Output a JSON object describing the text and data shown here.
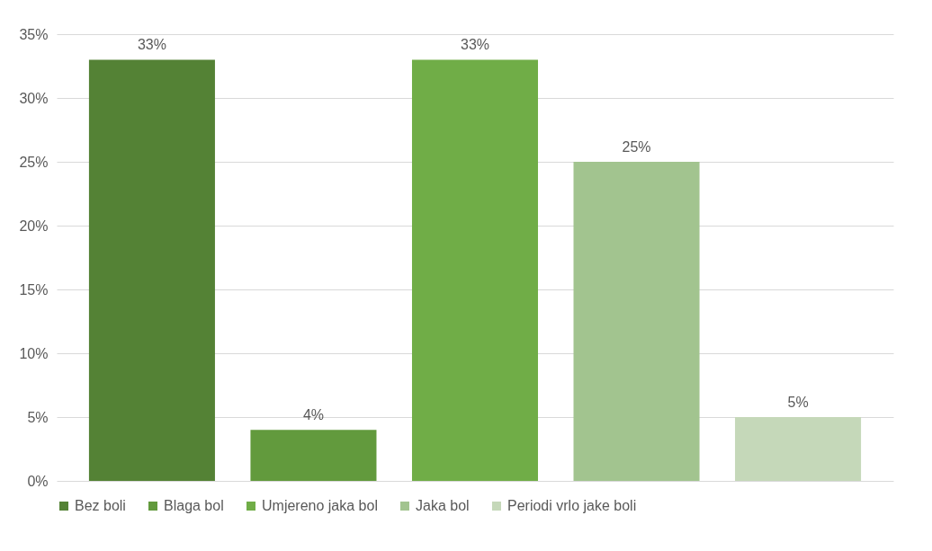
{
  "chart_data": {
    "type": "bar",
    "categories": [
      null,
      null,
      null,
      null,
      null
    ],
    "series": [
      {
        "name": "Bez boli",
        "color": "#548235",
        "values": [
          33,
          null,
          null,
          null,
          null
        ],
        "value_labels": [
          "33%",
          null,
          null,
          null,
          null
        ]
      },
      {
        "name": "Blaga bol",
        "color": "#629a3d",
        "values": [
          null,
          4,
          null,
          null,
          null
        ],
        "value_labels": [
          null,
          "4%",
          null,
          null,
          null
        ]
      },
      {
        "name": "Umjereno jaka bol",
        "color": "#70ad47",
        "values": [
          null,
          null,
          33,
          null,
          null
        ],
        "value_labels": [
          null,
          null,
          "33%",
          null,
          null
        ]
      },
      {
        "name": "Jaka bol",
        "color": "#a2c48f",
        "values": [
          null,
          null,
          null,
          25,
          null
        ],
        "value_labels": [
          null,
          null,
          null,
          "25%",
          null
        ]
      },
      {
        "name": "Periodi vrlo jake boli",
        "color": "#c5d8b9",
        "values": [
          null,
          null,
          null,
          null,
          5
        ],
        "value_labels": [
          null,
          null,
          null,
          null,
          "5%"
        ]
      }
    ],
    "ylim": [
      0,
      35
    ],
    "yticks": [
      {
        "value": 0,
        "label": "0%"
      },
      {
        "value": 5,
        "label": "5%"
      },
      {
        "value": 10,
        "label": "10%"
      },
      {
        "value": 15,
        "label": "15%"
      },
      {
        "value": 20,
        "label": "20%"
      },
      {
        "value": 25,
        "label": "25%"
      },
      {
        "value": 30,
        "label": "30%"
      },
      {
        "value": 35,
        "label": "35%"
      }
    ],
    "grid": "y",
    "legend": "bottom"
  }
}
